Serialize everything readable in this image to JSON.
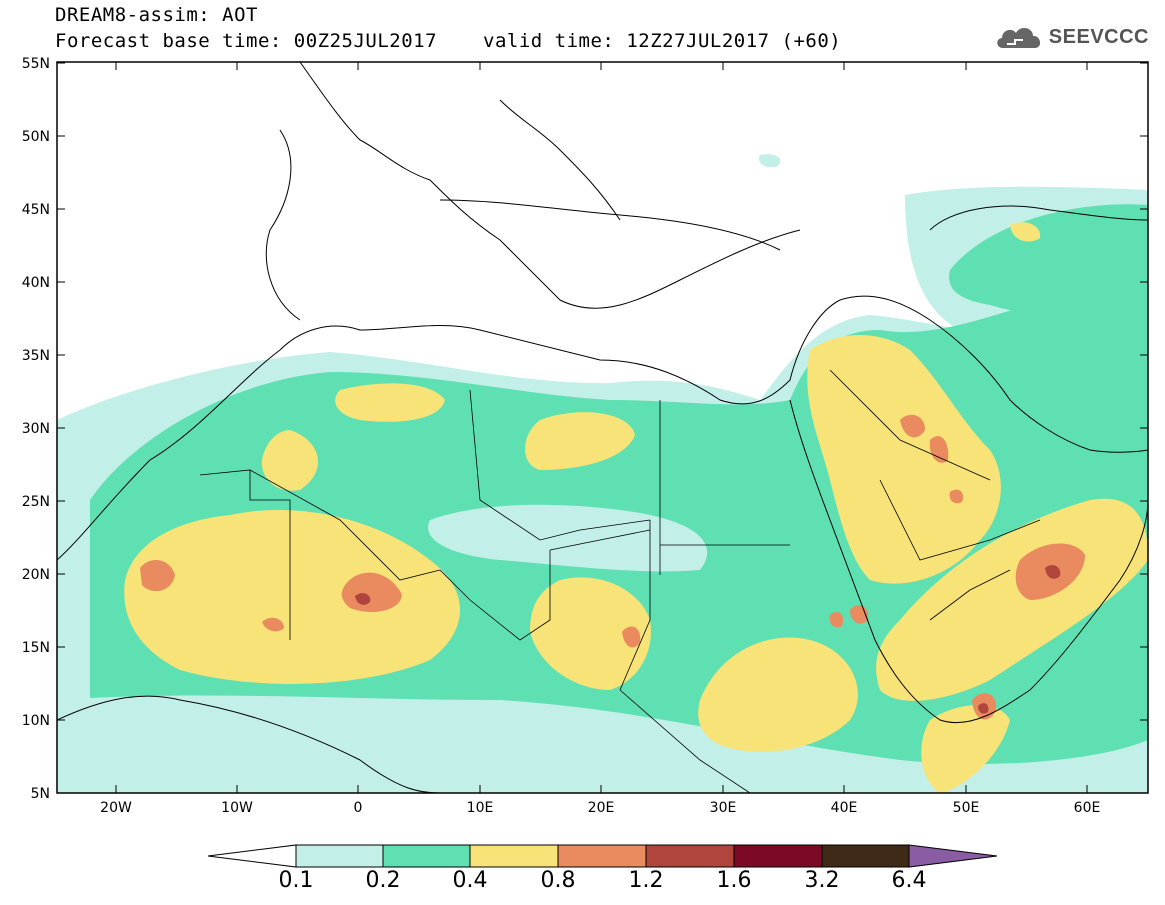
{
  "header": {
    "line1": "DREAM8-assim: AOT",
    "base_label": "Forecast base time: 00Z25JUL2017",
    "valid_label": "valid time: 12Z27JUL2017 (+60)"
  },
  "logo": {
    "text": "SEEVCCC",
    "icon": "cloud-icon"
  },
  "map": {
    "lat_ticks": [
      "55N",
      "50N",
      "45N",
      "40N",
      "35N",
      "30N",
      "25N",
      "20N",
      "15N",
      "10N",
      "5N"
    ],
    "lon_ticks": [
      "20W",
      "10W",
      "0",
      "10E",
      "20E",
      "30E",
      "40E",
      "50E",
      "60E"
    ]
  },
  "legend": {
    "labels": [
      "0.1",
      "0.2",
      "0.4",
      "0.8",
      "1.2",
      "1.6",
      "3.2",
      "6.4"
    ],
    "colors": [
      "#ffffff",
      "#c2efe8",
      "#5ee0b2",
      "#f7e377",
      "#e98a5f",
      "#b0453d",
      "#7c0a25",
      "#3e2a17",
      "#8a5ca3"
    ]
  },
  "colors": {
    "lowest": "#c2efe8",
    "low": "#5ee0b2",
    "mid": "#f7e377",
    "high": "#e98a5f",
    "higher": "#b0453d",
    "border": "#000000"
  }
}
